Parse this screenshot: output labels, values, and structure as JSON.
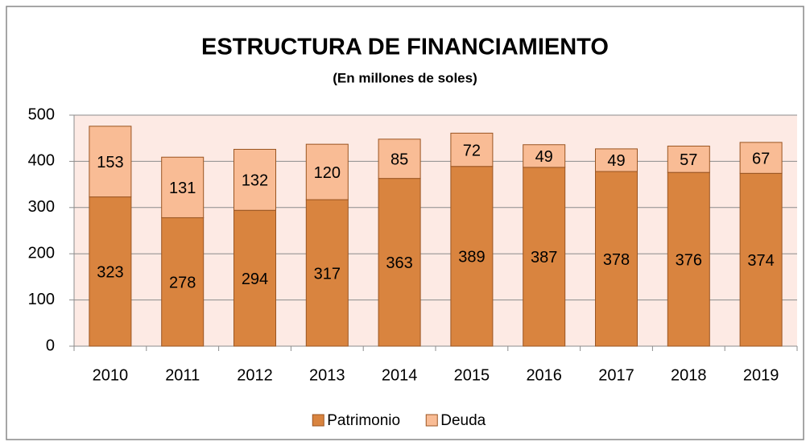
{
  "chart_data": {
    "type": "stacked_bar",
    "title": "ESTRUCTURA DE FINANCIAMIENTO",
    "subtitle": "(En millones de soles)",
    "categories": [
      "2010",
      "2011",
      "2012",
      "2013",
      "2014",
      "2015",
      "2016",
      "2017",
      "2018",
      "2019"
    ],
    "series": [
      {
        "name": "Patrimonio",
        "color": "#d9843f",
        "values": [
          323,
          278,
          294,
          317,
          363,
          389,
          387,
          378,
          376,
          374
        ]
      },
      {
        "name": "Deuda",
        "color": "#f9bc95",
        "values": [
          153,
          131,
          132,
          120,
          85,
          72,
          49,
          49,
          57,
          67
        ]
      }
    ],
    "ylim": [
      0,
      500
    ],
    "yticks": [
      0,
      100,
      200,
      300,
      400,
      500
    ],
    "grid": true,
    "legend": "bottom"
  }
}
